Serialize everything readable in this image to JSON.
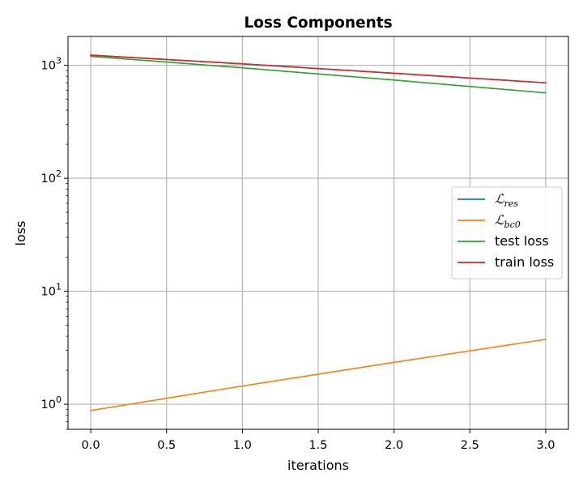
{
  "chart_data": {
    "type": "line",
    "title": "Loss Components",
    "xlabel": "iterations",
    "ylabel": "loss",
    "yscale": "log",
    "xlim": [
      -0.15,
      3.15
    ],
    "ylim": [
      0.6,
      1800
    ],
    "grid": true,
    "legend_position": "center-right",
    "x_ticks": [
      {
        "value": 0.0,
        "label": "0.0"
      },
      {
        "value": 0.5,
        "label": "0.5"
      },
      {
        "value": 1.0,
        "label": "1.0"
      },
      {
        "value": 1.5,
        "label": "1.5"
      },
      {
        "value": 2.0,
        "label": "2.0"
      },
      {
        "value": 2.5,
        "label": "2.5"
      },
      {
        "value": 3.0,
        "label": "3.0"
      }
    ],
    "y_ticks": [
      {
        "value": 1,
        "base": "10",
        "exp": "0"
      },
      {
        "value": 10,
        "base": "10",
        "exp": "1"
      },
      {
        "value": 100,
        "base": "10",
        "exp": "2"
      },
      {
        "value": 1000,
        "base": "10",
        "exp": "3"
      }
    ],
    "x": [
      0,
      1,
      2,
      3
    ],
    "series": [
      {
        "name": "ℒ",
        "subscript": "res",
        "color": "#1f77b4",
        "values": [
          1230,
          1030,
          850,
          700
        ]
      },
      {
        "name": "ℒ",
        "subscript": "bc0",
        "color": "#ff7f0e",
        "values": [
          0.88,
          1.45,
          2.35,
          3.75
        ]
      },
      {
        "name": "test loss",
        "color": "#2ca02c",
        "values": [
          1200,
          950,
          740,
          570
        ]
      },
      {
        "name": "train loss",
        "color": "#d62728",
        "values": [
          1230,
          1030,
          850,
          700
        ]
      }
    ]
  }
}
